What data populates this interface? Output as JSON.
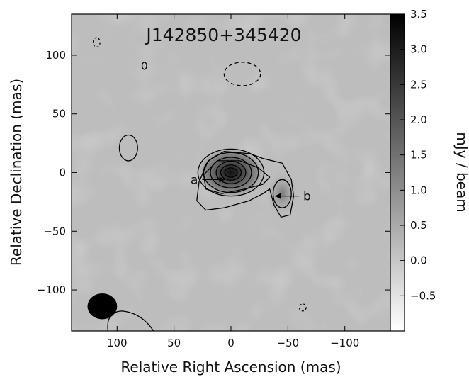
{
  "chart_data": {
    "type": "heatmap",
    "title": "J142850+345420",
    "xlabel": "Relative Right Ascension (mas)",
    "ylabel": "Relative Declination (mas)",
    "colorbar_label": "mJy / beam",
    "xlim": [
      140,
      -140
    ],
    "ylim": [
      -135,
      135
    ],
    "x_ticks": [
      100,
      50,
      0,
      -50,
      -100
    ],
    "x_tick_labels": [
      "100",
      "50",
      "0",
      "−50",
      "−100"
    ],
    "y_ticks": [
      100,
      50,
      0,
      -50,
      -100
    ],
    "y_tick_labels": [
      "100",
      "50",
      "0",
      "−50",
      "−100"
    ],
    "colorbar_range": [
      -1.0,
      3.5
    ],
    "colorbar_ticks": [
      3.5,
      3.0,
      2.5,
      2.0,
      1.5,
      1.0,
      0.5,
      0.0,
      -0.5
    ],
    "colorbar_tick_labels": [
      "3.5",
      "3.0",
      "2.5",
      "2.0",
      "1.5",
      "1.0",
      "0.5",
      "0.0",
      "−0.5"
    ],
    "colormap": [
      "#ffffff",
      "#000000"
    ],
    "components": [
      {
        "label": "a",
        "x": 0,
        "y": 0,
        "peak_mJy_per_beam": 3.5
      },
      {
        "label": "b",
        "x": -45,
        "y": -18
      }
    ],
    "annotations": [
      {
        "text": "a",
        "x": 29,
        "y": -6
      },
      {
        "text": "b",
        "x": -61,
        "y": -20
      }
    ],
    "beam": {
      "x": 113,
      "y": -114,
      "major": 26,
      "minor": 22
    }
  }
}
